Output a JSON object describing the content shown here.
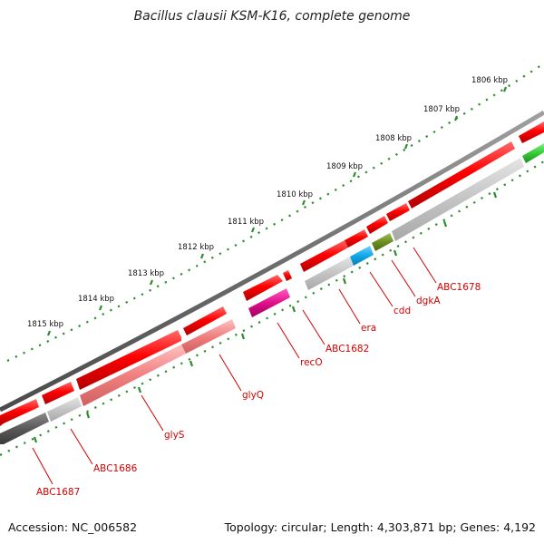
{
  "title": "Bacillus clausii KSM-K16, complete genome",
  "accession_text": "Accession: NC_006582",
  "topology_text": "Topology: circular; Length: 4,303,871 bp; Genes: 4,192",
  "colors": {
    "backbone": "#7a7a7a",
    "ticks": "#2e8b2e",
    "forward_gene": "#ff0000",
    "gene_label": "#d40000",
    "pseudo_light": "#c8c8c8",
    "pseudo_dark": "#5a5a5a",
    "salmon": "#f08080",
    "magenta": "#e0108a",
    "cyan": "#10a8e8",
    "olive": "#6b8e23",
    "green": "#33cc33"
  },
  "scale_labels": [
    "1806 kbp",
    "1807 kbp",
    "1808 kbp",
    "1809 kbp",
    "1810 kbp",
    "1811 kbp",
    "1812 kbp",
    "1813 kbp",
    "1814 kbp",
    "1815 kbp"
  ],
  "gene_labels": [
    {
      "name": "ABC1678",
      "color": "red"
    },
    {
      "name": "dgkA",
      "color": "red"
    },
    {
      "name": "cdd",
      "color": "red"
    },
    {
      "name": "era",
      "color": "red"
    },
    {
      "name": "ABC1682",
      "color": "red"
    },
    {
      "name": "recO",
      "color": "red"
    },
    {
      "name": "glyQ",
      "color": "red"
    },
    {
      "name": "glyS",
      "color": "red"
    },
    {
      "name": "ABC1686",
      "color": "red"
    },
    {
      "name": "ABC1687",
      "color": "red"
    }
  ]
}
